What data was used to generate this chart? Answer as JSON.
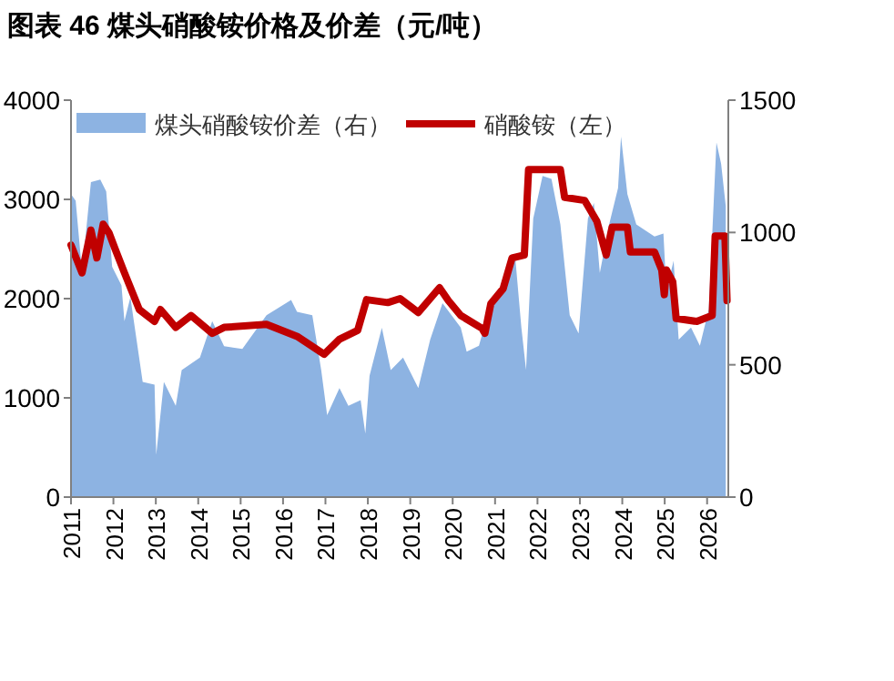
{
  "chart_data": {
    "type": "line",
    "title": "图表 46 煤头硝酸铵价格及价差（元/吨）",
    "xlim": [
      2011,
      2026.5
    ],
    "xticks": [
      2011,
      2012,
      2013,
      2014,
      2015,
      2016,
      2017,
      2018,
      2019,
      2020,
      2021,
      2022,
      2023,
      2024,
      2025,
      2026
    ],
    "ylim": [
      0,
      4000
    ],
    "yticks": [
      0,
      1000,
      2000,
      3000,
      4000
    ],
    "y2lim": [
      0,
      1500
    ],
    "y2ticks": [
      0,
      500,
      1000,
      1500
    ],
    "grid": false,
    "legend": "top",
    "series": [
      {
        "name": "煤头硝酸铵价差（右）",
        "type": "area",
        "axis": "y2",
        "color": "#8db3e2",
        "x": [
          2011.0,
          2011.11,
          2011.26,
          2011.47,
          2011.69,
          2011.83,
          2011.97,
          2012.19,
          2012.26,
          2012.4,
          2012.69,
          2012.97,
          2013.01,
          2013.19,
          2013.47,
          2013.61,
          2014.04,
          2014.33,
          2014.61,
          2015.04,
          2015.61,
          2016.19,
          2016.33,
          2016.69,
          2016.9,
          2017.04,
          2017.33,
          2017.54,
          2017.83,
          2017.94,
          2018.04,
          2018.33,
          2018.54,
          2018.83,
          2019.19,
          2019.47,
          2019.76,
          2020.19,
          2020.33,
          2020.62,
          2020.9,
          2021.19,
          2021.47,
          2021.62,
          2021.73,
          2021.9,
          2022.12,
          2022.33,
          2022.54,
          2022.76,
          2022.97,
          2023.19,
          2023.33,
          2023.47,
          2023.69,
          2023.9,
          2023.97,
          2024.12,
          2024.33,
          2024.54,
          2024.76,
          2024.97,
          2025.04,
          2025.21,
          2025.33,
          2025.62,
          2025.83,
          2026.04,
          2026.22,
          2026.33,
          2026.44
        ],
        "values": [
          1145,
          1120,
          850,
          1190,
          1200,
          1155,
          870,
          800,
          665,
          755,
          435,
          425,
          160,
          435,
          345,
          480,
          527,
          665,
          570,
          560,
          687,
          745,
          700,
          687,
          480,
          310,
          412,
          345,
          366,
          240,
          458,
          640,
          480,
          527,
          412,
          595,
          733,
          641,
          550,
          572,
          733,
          778,
          916,
          641,
          481,
          1053,
          1214,
          1202,
          1030,
          687,
          618,
          1053,
          1111,
          847,
          1030,
          1168,
          1362,
          1145,
          1030,
          1008,
          985,
          996,
          779,
          893,
          595,
          641,
          572,
          710,
          1340,
          1260,
          1099
        ]
      },
      {
        "name": "硝酸铵（左）",
        "type": "line",
        "color": "#c00000",
        "x": [
          2011.0,
          2011.26,
          2011.47,
          2011.61,
          2011.76,
          2011.9,
          2012.04,
          2012.26,
          2012.61,
          2012.97,
          2013.11,
          2013.47,
          2013.83,
          2014.33,
          2014.61,
          2015.61,
          2016.33,
          2016.97,
          2017.33,
          2017.76,
          2017.97,
          2018.47,
          2018.76,
          2019.19,
          2019.69,
          2019.9,
          2020.19,
          2020.69,
          2020.76,
          2020.9,
          2021.19,
          2021.4,
          2021.69,
          2021.79,
          2022.54,
          2022.64,
          2023.11,
          2023.4,
          2023.62,
          2023.76,
          2024.12,
          2024.19,
          2024.76,
          2024.93,
          2024.99,
          2025.04,
          2025.19,
          2025.27,
          2025.76,
          2026.12,
          2026.19,
          2026.42,
          2026.47
        ],
        "values": [
          2540,
          2260,
          2690,
          2410,
          2750,
          2660,
          2500,
          2260,
          1890,
          1770,
          1890,
          1710,
          1830,
          1650,
          1710,
          1740,
          1620,
          1440,
          1590,
          1680,
          1990,
          1960,
          2000,
          1860,
          2110,
          1980,
          1830,
          1700,
          1650,
          1950,
          2100,
          2410,
          2440,
          3300,
          3300,
          3020,
          2990,
          2780,
          2440,
          2720,
          2720,
          2470,
          2470,
          2290,
          2040,
          2290,
          2170,
          1800,
          1770,
          1830,
          2630,
          2630,
          1980
        ]
      }
    ]
  }
}
